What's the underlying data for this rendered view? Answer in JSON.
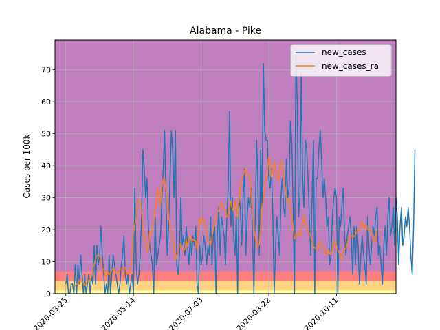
{
  "chart_data": {
    "type": "line",
    "title": "Alabama - Pike",
    "xlabel": "",
    "ylabel": "Cases per 100k",
    "ylim": [
      0,
      79.4
    ],
    "xlim": [
      "2020-03-17",
      "2020-11-24"
    ],
    "yticks": [
      0,
      10,
      20,
      30,
      40,
      50,
      60,
      70
    ],
    "xticks": [
      "2020-03-25",
      "2020-05-14",
      "2020-07-03",
      "2020-08-22",
      "2020-10-11"
    ],
    "grid": true,
    "legend_position": "top-right",
    "background_bands": [
      {
        "from": 0,
        "to": 1,
        "color": "#ffff9e"
      },
      {
        "from": 1,
        "to": 4,
        "color": "#ffd280"
      },
      {
        "from": 4,
        "to": 7,
        "color": "#ff7f7f"
      },
      {
        "from": 7,
        "to": 79.4,
        "color": "#bf7fbf"
      }
    ],
    "series": [
      {
        "name": "new_cases",
        "color": "#1f77b4",
        "start_date": "2020-03-25",
        "values": [
          3,
          6,
          0,
          0,
          3,
          3,
          0,
          9,
          0,
          9,
          3,
          12,
          6,
          0,
          6,
          0,
          3,
          6,
          0,
          6,
          3,
          15,
          3,
          15,
          9,
          12,
          21,
          12,
          6,
          0,
          3,
          0,
          12,
          0,
          6,
          12,
          9,
          6,
          3,
          0,
          3,
          9,
          12,
          18,
          6,
          3,
          6,
          0,
          3,
          6,
          0,
          33,
          9,
          3,
          6,
          12,
          24,
          45,
          39,
          30,
          36,
          21,
          15,
          12,
          9,
          0,
          24,
          9,
          12,
          15,
          18,
          30,
          39,
          51,
          30,
          12,
          21,
          36,
          51,
          45,
          30,
          51,
          9,
          6,
          12,
          30,
          15,
          18,
          12,
          21,
          15,
          9,
          18,
          12,
          18,
          15,
          21,
          3,
          0,
          15,
          9,
          12,
          18,
          15,
          9,
          15,
          12,
          24,
          9,
          18,
          21,
          0,
          18,
          27,
          12,
          24,
          21,
          18,
          9,
          24,
          33,
          57,
          21,
          30,
          18,
          12,
          24,
          0,
          30,
          27,
          15,
          30,
          39,
          12,
          24,
          30,
          27,
          33,
          18,
          0,
          24,
          48,
          33,
          12,
          45,
          27,
          72,
          51,
          48,
          48,
          36,
          33,
          39,
          24,
          0,
          15,
          24,
          18,
          12,
          30,
          36,
          27,
          24,
          42,
          30,
          33,
          54,
          48,
          27,
          0,
          75,
          60,
          24,
          30,
          69,
          36,
          27,
          48,
          45,
          36,
          24,
          12,
          30,
          48,
          0,
          36,
          36,
          45,
          51,
          42,
          30,
          36,
          30,
          21,
          24,
          9,
          12,
          24,
          30,
          33,
          30,
          0,
          24,
          21,
          27,
          33,
          18,
          12,
          18,
          21,
          24,
          18,
          6,
          21,
          9,
          21,
          15,
          3,
          12,
          18,
          12,
          9,
          3,
          24,
          15,
          9,
          15,
          21,
          18,
          24,
          27,
          12,
          15,
          9,
          3,
          15,
          21,
          12,
          24,
          30,
          18,
          21,
          27,
          15,
          30,
          24,
          9,
          21,
          27,
          15,
          18,
          24,
          21,
          27,
          21,
          12,
          6,
          21,
          45
        ]
      },
      {
        "name": "new_cases_ra",
        "color": "#ff7f0e",
        "start_date": "2020-03-31",
        "values": [
          2.5,
          2.4,
          3.1,
          3.2,
          4.1,
          3.9,
          3.6,
          3.5,
          2.5,
          2.9,
          4.0,
          4.2,
          4.1,
          5.4,
          8.1,
          9.1,
          10.9,
          11.9,
          12.0,
          11.7,
          10.9,
          7.6,
          7.7,
          5.8,
          5.4,
          6.8,
          5.9,
          6.5,
          7.6,
          7.6,
          7.6,
          6.4,
          6.7,
          6.9,
          7.6,
          7.5,
          8.0,
          7.9,
          8.2,
          5.8,
          6.8,
          6.5,
          7.4,
          13.7,
          18.6,
          21.6,
          23.4,
          28.7,
          29.3,
          28.5,
          25.4,
          21.1,
          17.1,
          16.1,
          13.4,
          13.0,
          19.5,
          18.2,
          20.0,
          22.5,
          25.4,
          28.6,
          32.9,
          31.1,
          27.5,
          33.3,
          35.9,
          36.0,
          32.5,
          29.6,
          24.2,
          21.2,
          19.2,
          17.5,
          14.3,
          10.6,
          11.9,
          13.6,
          15.2,
          15.6,
          14.7,
          13.2,
          14.1,
          16.8,
          14.7,
          16.8,
          18.1,
          16.0,
          17.1,
          16.5,
          16.5,
          13.8,
          20.1,
          23.5,
          21.8,
          23.7,
          23.0,
          21.9,
          18.8,
          16.7,
          16.3,
          15.0,
          17.4,
          20.0,
          21.4,
          23.7,
          25.7,
          25.7,
          27.6,
          28.4,
          26.9,
          26.5,
          26.3,
          24.0,
          24.0,
          26.8,
          29.0,
          26.6,
          25.7,
          29.1,
          27.4,
          23.5,
          29.1,
          33.5,
          35.4,
          36.6,
          38.3,
          39.0,
          37.2,
          37.6,
          35.6,
          30.3,
          25.5,
          20.9,
          17.6,
          15.8,
          14.5,
          15.4,
          21.4,
          27.0,
          29.1,
          32.8,
          36.4,
          37.5,
          42.7,
          40.9,
          36.4,
          37.5,
          41.1,
          39.3,
          37.3,
          35.2,
          38.5,
          41.3,
          40.4,
          35.9,
          33.6,
          29.6,
          28.5,
          29.6,
          26.2,
          23.4,
          20.9,
          17.1,
          18.2,
          18.8,
          19.0,
          17.7,
          19.7,
          21.6,
          24.2,
          22.0,
          20.8,
          19.5,
          19.0,
          17.9,
          16.3,
          14.6,
          14.4,
          14.0,
          13.6,
          16.2,
          16.2,
          14.7,
          14.7,
          13.2,
          12.3,
          12.8,
          13.9,
          12.4,
          12.2,
          13.7,
          16.4,
          15.8,
          15.1,
          13.6,
          12.8,
          11.4,
          10.9,
          13.0,
          14.2,
          14.0,
          15.7,
          17.6,
          17.7,
          17.9,
          18.2,
          17.8,
          18.3,
          19.3,
          20.4,
          19.8,
          21.3,
          22.6,
          20.9,
          20.2,
          21.5,
          20.5,
          19.6,
          20.0,
          19.7,
          16.1,
          16.2,
          17.1,
          19.9
        ]
      }
    ]
  }
}
